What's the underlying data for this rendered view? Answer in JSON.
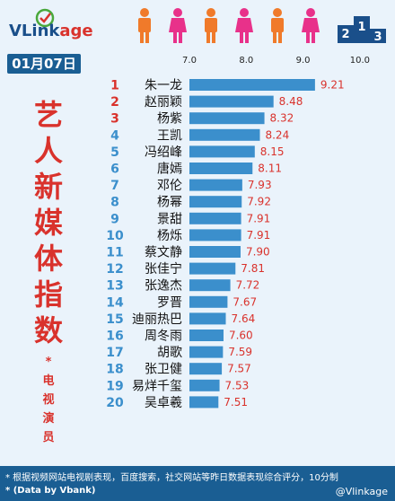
{
  "brand": {
    "logo_text_main": "VLink",
    "logo_text_accent": "age"
  },
  "date": "01月07日",
  "title_chars": [
    "艺",
    "人",
    "新",
    "媒",
    "体",
    "指",
    "数"
  ],
  "subtitle_chars": [
    "*",
    "电",
    "视",
    "演",
    "员"
  ],
  "footnote": "* 根据视频网站电视剧表现，百度搜索，社交网站等昨日数据表现综合评分，10分制",
  "source": "* (Data by Vbank)",
  "watermark": "@Vlinkage",
  "colors": {
    "bar": "#3b8fcc",
    "rank_top": "#d9322c",
    "rank_other": "#3b8fcc",
    "value": "#d9322c",
    "footer": "#1a5e93"
  },
  "chart_data": {
    "type": "bar",
    "orientation": "horizontal",
    "xlim": [
      7.0,
      10.0
    ],
    "xticks": [
      "7.0",
      "8.0",
      "9.0",
      "10.0"
    ],
    "ranks": [
      "1",
      "2",
      "3",
      "4",
      "5",
      "6",
      "7",
      "8",
      "9",
      "10",
      "11",
      "12",
      "13",
      "14",
      "15",
      "16",
      "17",
      "18",
      "19",
      "20"
    ],
    "categories": [
      "朱一龙",
      "赵丽颖",
      "杨紫",
      "王凯",
      "冯绍峰",
      "唐嫣",
      "邓伦",
      "杨幂",
      "景甜",
      "杨烁",
      "蔡文静",
      "张佳宁",
      "张逸杰",
      "罗晋",
      "迪丽热巴",
      "周冬雨",
      "胡歌",
      "张卫健",
      "易烊千玺",
      "吴卓羲"
    ],
    "values": [
      9.21,
      8.48,
      8.32,
      8.24,
      8.15,
      8.11,
      7.93,
      7.92,
      7.91,
      7.91,
      7.9,
      7.81,
      7.72,
      7.67,
      7.64,
      7.6,
      7.59,
      7.57,
      7.53,
      7.51
    ],
    "value_labels": [
      "9.21",
      "8.48",
      "8.32",
      "8.24",
      "8.15",
      "8.11",
      "7.93",
      "7.92",
      "7.91",
      "7.91",
      "7.90",
      "7.81",
      "7.72",
      "7.67",
      "7.64",
      "7.60",
      "7.59",
      "7.57",
      "7.53",
      "7.51"
    ]
  }
}
